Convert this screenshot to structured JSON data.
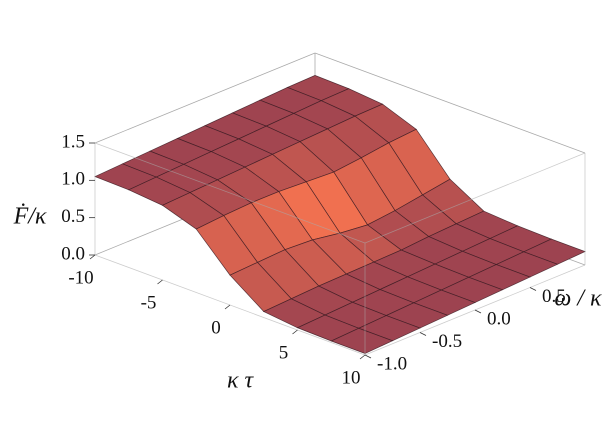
{
  "chart_data": {
    "type": "surface",
    "xlabel": "κ τ",
    "ylabel": "ω / κ",
    "zlabel": "Ḟ/κ",
    "x": [
      -10,
      -7.5,
      -5,
      -2.5,
      0,
      2.5,
      5,
      7.5,
      10
    ],
    "y": [
      -1,
      -0.75,
      -0.5,
      -0.25,
      0,
      0.25,
      0.5,
      0.75,
      1
    ],
    "z": [
      [
        1.05,
        1.07,
        1.09,
        1.11,
        1.13,
        1.15,
        1.17,
        1.19,
        1.2
      ],
      [
        1.04,
        1.06,
        1.08,
        1.1,
        1.12,
        1.14,
        1.16,
        1.18,
        1.19
      ],
      [
        1.0,
        1.02,
        1.04,
        1.06,
        1.08,
        1.1,
        1.12,
        1.14,
        1.15
      ],
      [
        0.85,
        0.88,
        0.9,
        0.9,
        0.88,
        0.86,
        0.9,
        0.95,
        0.98
      ],
      [
        0.4,
        0.42,
        0.44,
        0.42,
        0.36,
        0.32,
        0.36,
        0.42,
        0.48
      ],
      [
        0.08,
        0.1,
        0.12,
        0.13,
        0.14,
        0.15,
        0.18,
        0.2,
        0.22
      ],
      [
        0.03,
        0.05,
        0.07,
        0.09,
        0.11,
        0.13,
        0.15,
        0.17,
        0.19
      ],
      [
        0.02,
        0.04,
        0.06,
        0.08,
        0.1,
        0.12,
        0.14,
        0.16,
        0.18
      ],
      [
        0.02,
        0.04,
        0.06,
        0.08,
        0.1,
        0.12,
        0.14,
        0.16,
        0.18
      ]
    ],
    "xlim": [
      -10,
      10
    ],
    "xticks": [
      -10,
      -5,
      0,
      5,
      10
    ],
    "ylim": [
      -1,
      1
    ],
    "yticks": [
      {
        "value": -1,
        "label": "-1.0"
      },
      -0.5,
      {
        "value": 0,
        "label": "0.0"
      },
      0.5
    ],
    "zlim": [
      0,
      1.5
    ],
    "zticks": [
      {
        "value": 0,
        "label": "0.0"
      },
      0.5,
      {
        "value": 1,
        "label": "1.0"
      },
      1.5
    ],
    "color": "#b65570"
  }
}
